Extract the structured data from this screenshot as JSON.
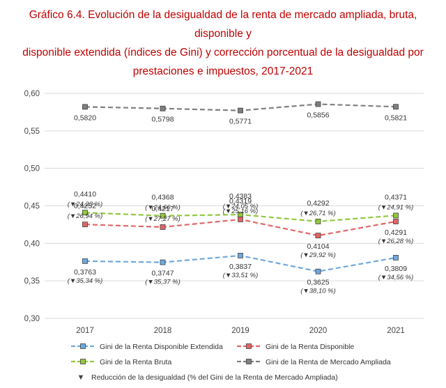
{
  "header": {
    "title_line1": "Gráfico 6.4. Evolución de la desigualdad de la renta de mercado ampliada, bruta, disponible y",
    "title_line2": "disponible extendida (índices de Gini) y corrección porcentual de la desigualdad por",
    "title_line3": "prestaciones e impuestos, 2017-2021"
  },
  "chart_data": {
    "type": "line",
    "title": "Gráfico 6.4. Evolución de la desigualdad de la renta de mercado ampliada, bruta, disponible y disponible extendida (índices de Gini) y corrección porcentual de la desigualdad por prestaciones e impuestos, 2017-2021",
    "categories": [
      "2017",
      "2018",
      "2019",
      "2020",
      "2021"
    ],
    "ylim": [
      0.3,
      0.6
    ],
    "yticks": [
      0.3,
      0.35,
      0.4,
      0.45,
      0.5,
      0.55,
      0.6
    ],
    "ytick_labels": [
      "0,30",
      "0,35",
      "0,40",
      "0,45",
      "0,50",
      "0,55",
      "0,60"
    ],
    "grid": true,
    "legend_position": "bottom",
    "series": [
      {
        "key": "mercado",
        "name": "Gini de la Renta de Mercado Ampliada",
        "color": "#7f7f7f",
        "values": [
          0.582,
          0.5798,
          0.5771,
          0.5856,
          0.5821
        ],
        "value_labels": [
          "0,5820",
          "0,5798",
          "0,5771",
          "0,5856",
          "0,5821"
        ],
        "reduction_labels": [
          "",
          "",
          "",
          "",
          ""
        ]
      },
      {
        "key": "bruta",
        "name": "Gini de la Renta Bruta",
        "color": "#92c83e",
        "values": [
          0.441,
          0.4368,
          0.4383,
          0.4292,
          0.4371
        ],
        "value_labels": [
          "0,4410",
          "0,4368",
          "0,4383",
          "0,4292",
          "0,4371"
        ],
        "reduction_labels": [
          "24,23 %",
          "24,66 %",
          "24,05 %",
          "26,71 %",
          "24,91 %"
        ]
      },
      {
        "key": "disponible",
        "name": "Gini de la Renta Disponible",
        "color": "#e06666",
        "values": [
          0.4252,
          0.4217,
          0.4319,
          0.4104,
          0.4291
        ],
        "value_labels": [
          "0,4252",
          "0,4217",
          "0,4319",
          "0,4104",
          "0,4291"
        ],
        "reduction_labels": [
          "26,94 %",
          "27,27 %",
          "25,16 %",
          "29,92 %",
          "26,28 %"
        ]
      },
      {
        "key": "extendida",
        "name": "Gini de la Renta Disponible Extendida",
        "color": "#6fa8dc",
        "values": [
          0.3763,
          0.3747,
          0.3837,
          0.3625,
          0.3809
        ],
        "value_labels": [
          "0,3763",
          "0,3747",
          "0,3837",
          "0,3625",
          "0,3809"
        ],
        "reduction_labels": [
          "35,34 %",
          "35,37 %",
          "33,51 %",
          "38,10 %",
          "34,56 %"
        ]
      }
    ],
    "reduction_legend": "Reducción de la desigualdad (% del Gini de la Renta de Mercado Ampliada)",
    "reduction_marker": "▼"
  }
}
